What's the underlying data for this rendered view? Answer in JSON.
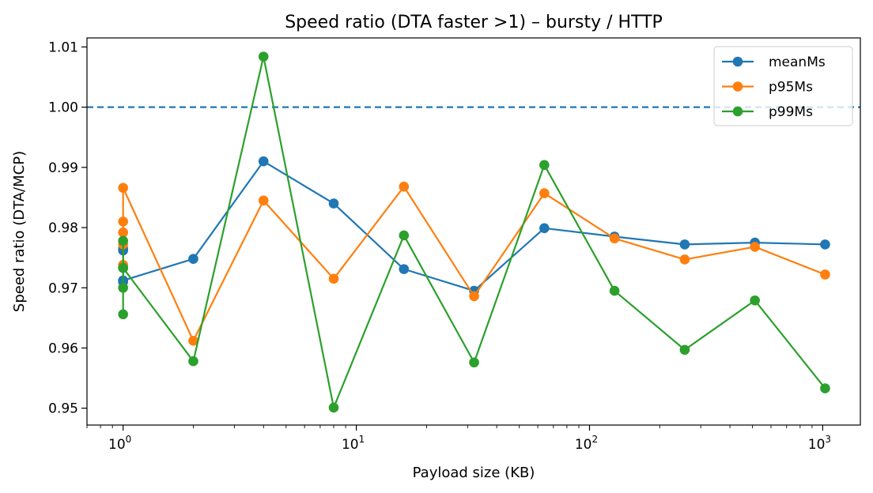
{
  "chart_data": {
    "type": "line",
    "title": "Speed ratio (DTA faster >1) – bursty / HTTP",
    "xlabel": "Payload size (KB)",
    "ylabel": "Speed ratio (DTA/MCP)",
    "xscale": "log",
    "xlim": [
      0.7,
      1450
    ],
    "ylim": [
      0.9472,
      1.0115
    ],
    "x_ticks": [
      {
        "value": 1,
        "base": "10",
        "exp": "0"
      },
      {
        "value": 10,
        "base": "10",
        "exp": "1"
      },
      {
        "value": 100,
        "base": "10",
        "exp": "2"
      },
      {
        "value": 1000,
        "base": "10",
        "exp": "3"
      }
    ],
    "y_ticks": [
      {
        "value": 0.95,
        "label": "0.95"
      },
      {
        "value": 0.96,
        "label": "0.96"
      },
      {
        "value": 0.97,
        "label": "0.97"
      },
      {
        "value": 0.98,
        "label": "0.98"
      },
      {
        "value": 0.99,
        "label": "0.99"
      },
      {
        "value": 1.0,
        "label": "1.00"
      },
      {
        "value": 1.01,
        "label": "1.01"
      }
    ],
    "reference_line": {
      "y": 1.0,
      "style": "dashed",
      "color": "#1f77b4"
    },
    "grid": false,
    "legend_position": "top-right",
    "series": [
      {
        "name": "meanMs",
        "color": "#1f77b4",
        "x": [
          1,
          1,
          1,
          1,
          1,
          2,
          4,
          8,
          16,
          32,
          64,
          128,
          256,
          512,
          1024
        ],
        "y": [
          0.9765,
          0.9762,
          0.9712,
          0.971,
          0.9712,
          0.9748,
          0.991,
          0.984,
          0.9731,
          0.9695,
          0.9799,
          0.9785,
          0.9772,
          0.9775,
          0.9772
        ]
      },
      {
        "name": "p95Ms",
        "color": "#ff7f0e",
        "x": [
          1,
          1,
          1,
          1,
          1,
          2,
          4,
          8,
          16,
          32,
          64,
          128,
          256,
          512,
          1024
        ],
        "y": [
          0.9792,
          0.981,
          0.9738,
          0.9772,
          0.9866,
          0.9612,
          0.9845,
          0.9715,
          0.9868,
          0.9686,
          0.9857,
          0.9782,
          0.9747,
          0.9768,
          0.9722
        ]
      },
      {
        "name": "p99Ms",
        "color": "#2ca02c",
        "x": [
          1,
          1,
          1,
          1,
          1,
          2,
          4,
          8,
          16,
          32,
          64,
          128,
          256,
          512,
          1024
        ],
        "y": [
          0.9778,
          0.97,
          0.9656,
          0.9733,
          0.9733,
          0.9578,
          1.0084,
          0.9501,
          0.9787,
          0.9576,
          0.9904,
          0.9695,
          0.9597,
          0.9679,
          0.9533
        ]
      }
    ]
  }
}
